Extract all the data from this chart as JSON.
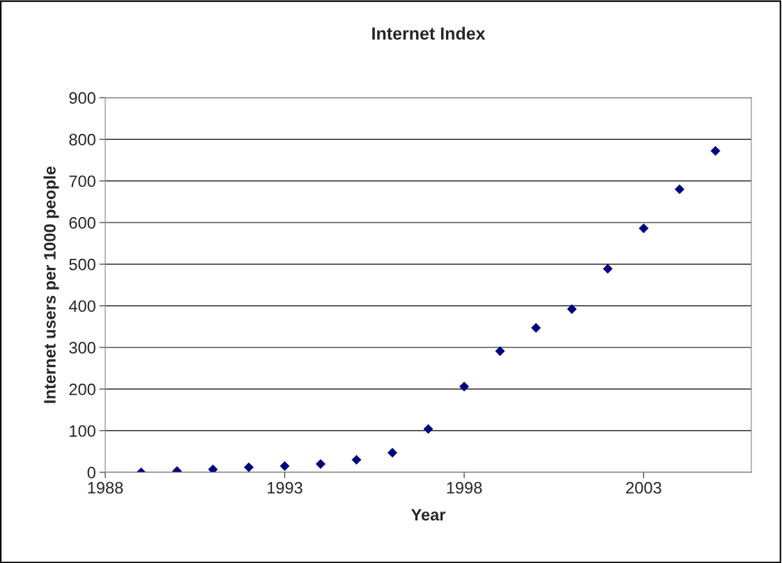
{
  "chart_data": {
    "type": "scatter",
    "title": "Internet Index",
    "xlabel": "Year",
    "ylabel": "Internet users per 1000 people",
    "x": [
      1989,
      1990,
      1991,
      1992,
      1993,
      1994,
      1995,
      1996,
      1997,
      1998,
      1999,
      2000,
      2001,
      2002,
      2003,
      2004,
      2005
    ],
    "series": [
      {
        "color": "#000080",
        "values": [
          0,
          3,
          7,
          12,
          15,
          20,
          30,
          47,
          104,
          206,
          291,
          347,
          392,
          489,
          586,
          680,
          772
        ]
      }
    ],
    "xlim": [
      1988,
      2006
    ],
    "xticks": [
      1988,
      1993,
      1998,
      2003
    ],
    "ylim": [
      0,
      900
    ],
    "yticks": [
      0,
      100,
      200,
      300,
      400,
      500,
      600,
      700,
      800,
      900
    ],
    "grid": "y",
    "marker": "diamond",
    "legend": false
  }
}
